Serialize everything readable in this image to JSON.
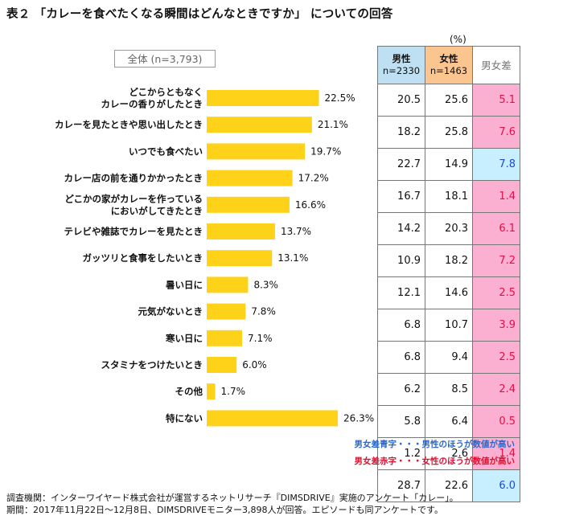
{
  "title": "表２ 「カレーを食べたくなる瞬間はどんなときですか」 についての回答",
  "unit_label": "(%)",
  "overall_label": "全体 (n=3,793)",
  "table": {
    "headers": {
      "male": "男性",
      "male_n": "n=2330",
      "female": "女性",
      "female_n": "n=1463",
      "diff": "男女差"
    },
    "rows": [
      {
        "male": "20.5",
        "female": "25.6",
        "diff": "5.1",
        "higher": "female"
      },
      {
        "male": "18.2",
        "female": "25.8",
        "diff": "7.6",
        "higher": "female"
      },
      {
        "male": "22.7",
        "female": "14.9",
        "diff": "7.8",
        "higher": "male"
      },
      {
        "male": "16.7",
        "female": "18.1",
        "diff": "1.4",
        "higher": "female"
      },
      {
        "male": "14.2",
        "female": "20.3",
        "diff": "6.1",
        "higher": "female"
      },
      {
        "male": "10.9",
        "female": "18.2",
        "diff": "7.2",
        "higher": "female"
      },
      {
        "male": "12.1",
        "female": "14.6",
        "diff": "2.5",
        "higher": "female"
      },
      {
        "male": "6.8",
        "female": "10.7",
        "diff": "3.9",
        "higher": "female"
      },
      {
        "male": "6.8",
        "female": "9.4",
        "diff": "2.5",
        "higher": "female"
      },
      {
        "male": "6.2",
        "female": "8.5",
        "diff": "2.4",
        "higher": "female"
      },
      {
        "male": "5.8",
        "female": "6.4",
        "diff": "0.5",
        "higher": "female"
      },
      {
        "male": "1.2",
        "female": "2.6",
        "diff": "1.4",
        "higher": "female"
      },
      {
        "male": "28.7",
        "female": "22.6",
        "diff": "6.0",
        "higher": "male"
      }
    ]
  },
  "legend": {
    "blue_note": "男女差青字・・・男性のほうが数値が高い",
    "red_note": "男女差赤字・・・女性のほうが数値が高い"
  },
  "footer": {
    "line1": "調査機関：インターワイヤード株式会社が運営するネットリサーチ『DIMSDRIVE』実施のアンケート「カレー」。",
    "line2": "期間：2017年11月22日～12月8日、DIMSDRIVEモニター3,898人が回答。エピソードも同アンケートです。"
  },
  "colors": {
    "bar": "#ffd21a",
    "male_header": "#bfe0f3",
    "female_header": "#fac58f",
    "diff_pink": "#fbb0d2",
    "diff_blue": "#c7efff",
    "text_blue": "#1f49d6",
    "text_red": "#e0104a"
  },
  "chart_data": {
    "type": "bar",
    "orientation": "horizontal",
    "title": "全体 (n=3,793)",
    "categories": [
      [
        "どこからともなく",
        "カレーの香りがしたとき"
      ],
      [
        "カレーを見たときや思い出したとき"
      ],
      [
        "いつでも食べたい"
      ],
      [
        "カレー店の前を通りかかったとき"
      ],
      [
        "どこかの家がカレーを作っている",
        "においがしてきたとき"
      ],
      [
        "テレビや雑誌でカレーを見たとき"
      ],
      [
        "ガッツリと食事をしたいとき"
      ],
      [
        "暑い日に"
      ],
      [
        "元気がないとき"
      ],
      [
        "寒い日に"
      ],
      [
        "スタミナをつけたいとき"
      ],
      [
        "その他"
      ],
      [
        "特にない"
      ]
    ],
    "values": [
      22.5,
      21.1,
      19.7,
      17.2,
      16.6,
      13.7,
      13.1,
      8.3,
      7.8,
      7.1,
      6.0,
      1.7,
      26.3
    ],
    "value_labels": [
      "22.5%",
      "21.1%",
      "19.7%",
      "17.2%",
      "16.6%",
      "13.7%",
      "13.1%",
      "8.3%",
      "7.8%",
      "7.1%",
      "6.0%",
      "1.7%",
      "26.3%"
    ],
    "xlim": [
      0,
      30
    ],
    "unit": "%"
  }
}
